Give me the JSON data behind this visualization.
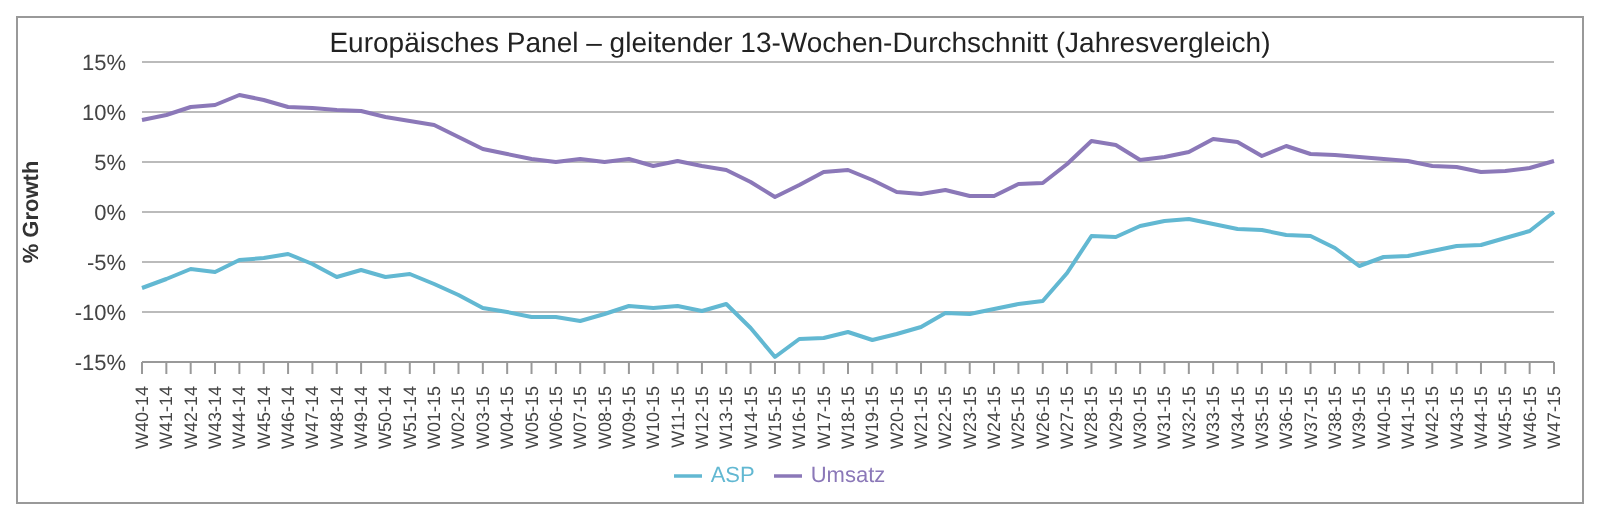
{
  "chart_data": {
    "type": "line",
    "title": "Europäisches Panel – gleitender 13-Wochen-Durchschnitt (Jahresvergleich)",
    "ylabel": "% Growth",
    "categories": [
      "W40-14",
      "W41-14",
      "W42-14",
      "W43-14",
      "W44-14",
      "W45-14",
      "W46-14",
      "W47-14",
      "W48-14",
      "W49-14",
      "W50-14",
      "W51-14",
      "W01-15",
      "W02-15",
      "W03-15",
      "W04-15",
      "W05-15",
      "W06-15",
      "W07-15",
      "W08-15",
      "W09-15",
      "W10-15",
      "W11-15",
      "W12-15",
      "W13-15",
      "W14-15",
      "W15-15",
      "W16-15",
      "W17-15",
      "W18-15",
      "W19-15",
      "W20-15",
      "W21-15",
      "W22-15",
      "W23-15",
      "W24-15",
      "W25-15",
      "W26-15",
      "W27-15",
      "W28-15",
      "W29-15",
      "W30-15",
      "W31-15",
      "W32-15",
      "W33-15",
      "W34-15",
      "W35-15",
      "W36-15",
      "W37-15",
      "W38-15",
      "W39-15",
      "W40-15",
      "W41-15",
      "W42-15",
      "W43-15",
      "W44-15",
      "W45-15",
      "W46-15",
      "W47-15"
    ],
    "series": [
      {
        "name": "Umsatz",
        "color": "#8b78b8",
        "values": [
          9.2,
          9.7,
          10.5,
          10.7,
          11.7,
          11.2,
          10.5,
          10.4,
          10.2,
          10.1,
          9.5,
          9.1,
          8.7,
          7.5,
          6.3,
          5.8,
          5.3,
          5.0,
          5.3,
          5.0,
          5.3,
          4.6,
          5.1,
          4.6,
          4.2,
          3.0,
          1.5,
          2.7,
          4.0,
          4.2,
          3.2,
          2.0,
          1.8,
          2.2,
          1.6,
          1.6,
          2.8,
          2.9,
          4.8,
          7.1,
          6.7,
          5.2,
          5.5,
          6.0,
          7.3,
          7.0,
          5.6,
          6.6,
          5.8,
          5.7,
          5.5,
          5.3,
          5.1,
          4.6,
          4.5,
          4.0,
          4.1,
          4.4,
          5.1
        ]
      },
      {
        "name": "ASP",
        "color": "#62b8d2",
        "values": [
          -7.6,
          -6.7,
          -5.7,
          -6.0,
          -4.8,
          -4.6,
          -4.2,
          -5.2,
          -6.5,
          -5.8,
          -6.5,
          -6.2,
          -7.2,
          -8.3,
          -9.6,
          -10.0,
          -10.5,
          -10.5,
          -10.9,
          -10.2,
          -9.4,
          -9.6,
          -9.4,
          -9.9,
          -9.2,
          -11.6,
          -14.5,
          -12.7,
          -12.6,
          -12.0,
          -12.8,
          -12.2,
          -11.5,
          -10.1,
          -10.2,
          -9.7,
          -9.2,
          -8.9,
          -6.1,
          -2.4,
          -2.5,
          -1.4,
          -0.9,
          -0.7,
          -1.2,
          -1.7,
          -1.8,
          -2.3,
          -2.4,
          -3.6,
          -5.4,
          -4.5,
          -4.4,
          -3.9,
          -3.4,
          -3.3,
          -2.6,
          -1.9,
          0.0
        ]
      }
    ],
    "ylim": [
      -15,
      15
    ],
    "yticks": [
      {
        "value": -15,
        "label": "-15%"
      },
      {
        "value": -10,
        "label": "-10%"
      },
      {
        "value": -5,
        "label": "-5%"
      },
      {
        "value": 0,
        "label": "0%"
      },
      {
        "value": 5,
        "label": "5%"
      },
      {
        "value": 10,
        "label": "10%"
      },
      {
        "value": 15,
        "label": "15%"
      }
    ],
    "grid": "y",
    "legend": "bottom",
    "marker": "none",
    "line_style": "solid"
  }
}
